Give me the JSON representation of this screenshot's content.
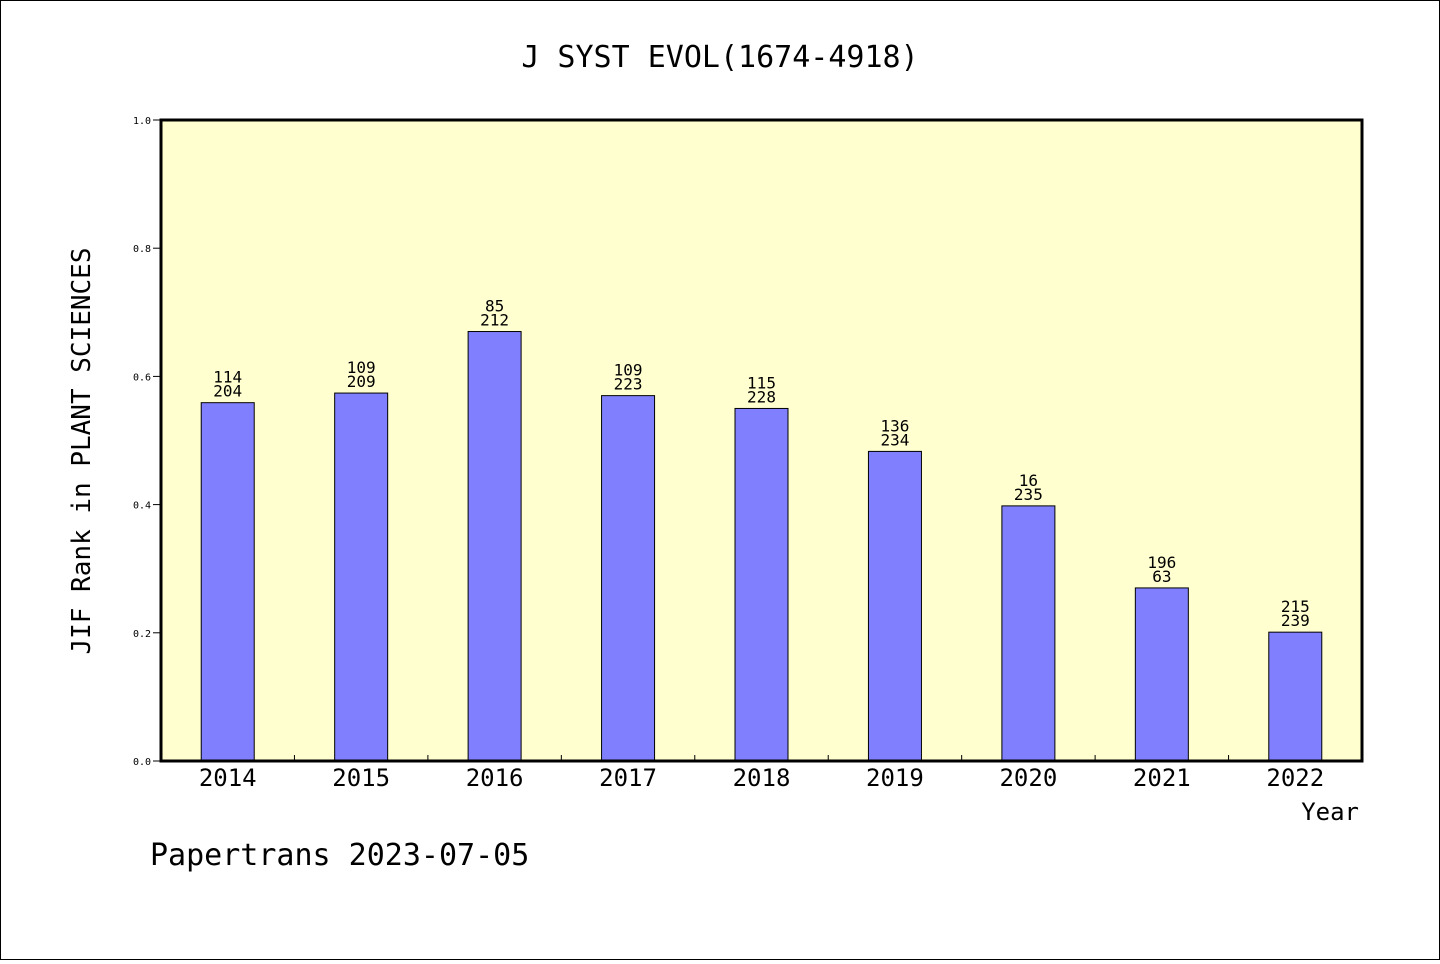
{
  "chart_data": {
    "type": "bar",
    "title": "J SYST EVOL(1674-4918)",
    "xlabel": "Year",
    "ylabel": "JIF Rank in PLANT SCIENCES",
    "ylim": [
      0,
      1.0
    ],
    "yticks": [
      "0.0",
      "0.2",
      "0.4",
      "0.6",
      "0.8",
      "1.0"
    ],
    "categories": [
      "2014",
      "2015",
      "2016",
      "2017",
      "2018",
      "2019",
      "2020",
      "2021",
      "2022"
    ],
    "values": [
      0.559,
      0.574,
      0.67,
      0.57,
      0.55,
      0.483,
      0.398,
      0.27,
      0.201
    ],
    "label_top": [
      "114",
      "109",
      "85",
      "109",
      "115",
      "136",
      "16",
      "196",
      "215"
    ],
    "label_bottom": [
      "204",
      "209",
      "212",
      "223",
      "228",
      "234",
      "235",
      "63",
      "239"
    ],
    "grid": false,
    "colors": {
      "bar": "#8080ff",
      "plot_background": "#ffffd0",
      "axis": "#000000"
    }
  },
  "footer": "Papertrans 2023-07-05"
}
